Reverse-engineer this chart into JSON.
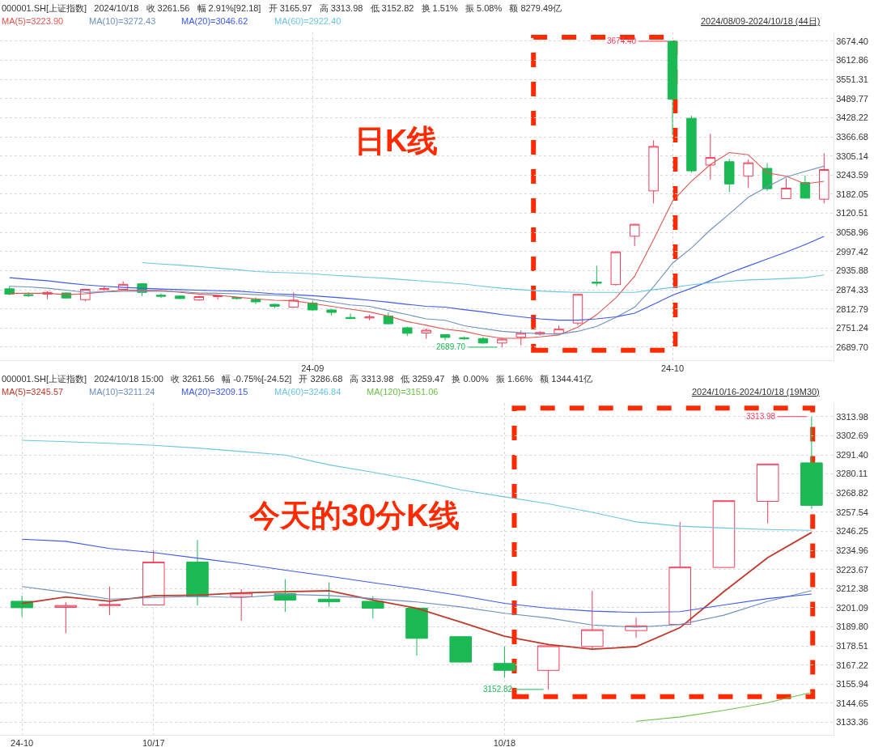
{
  "chart_data": [
    {
      "type": "candlestick",
      "title": "000001.SH[上证指数]   2024/10/18   收 3261.56   幅 2.91%[92.18]   开 3165.97   高 3313.98   低 3152.82   换 1.51%   振 5.08%   额 8279.49亿",
      "categories": [
        null,
        null,
        null,
        null,
        null,
        null,
        null,
        null,
        null,
        null,
        null,
        null,
        null,
        null,
        null,
        null,
        "24-09",
        null,
        null,
        null,
        null,
        null,
        null,
        null,
        null,
        null,
        null,
        null,
        null,
        null,
        null,
        null,
        null,
        null,
        null,
        "24-10",
        null,
        null,
        null,
        null,
        null,
        null,
        null,
        null
      ],
      "ohlc": [
        [
          2877.6,
          2885.7,
          2857.0,
          2860.6
        ],
        [
          2858.9,
          2866.0,
          2850.8,
          2856.1
        ],
        [
          2860.6,
          2870.5,
          2844.5,
          2866.0
        ],
        [
          2864.2,
          2866.0,
          2846.3,
          2848.1
        ],
        [
          2842.7,
          2876.8,
          2837.3,
          2875.9
        ],
        [
          2875.0,
          2885.7,
          2871.4,
          2878.6
        ],
        [
          2875.9,
          2901.8,
          2873.2,
          2892.0
        ],
        [
          2893.8,
          2895.6,
          2854.4,
          2866.0
        ],
        [
          2857.0,
          2862.4,
          2848.1,
          2853.5
        ],
        [
          2854.4,
          2857.0,
          2845.4,
          2846.3
        ],
        [
          2841.8,
          2855.3,
          2839.1,
          2852.6
        ],
        [
          2852.6,
          2857.0,
          2843.6,
          2855.3
        ],
        [
          2849.9,
          2852.6,
          2842.7,
          2846.3
        ],
        [
          2843.6,
          2849.9,
          2828.4,
          2835.6
        ],
        [
          2827.5,
          2830.4,
          2815.0,
          2821.3
        ],
        [
          2818.6,
          2866.0,
          2816.8,
          2841.0
        ],
        [
          2832.0,
          2837.4,
          2807.8,
          2809.6
        ],
        [
          2809.6,
          2812.4,
          2791.6,
          2801.6
        ],
        [
          2785.5,
          2798.0,
          2780.1,
          2781.9
        ],
        [
          2783.7,
          2794.4,
          2776.5,
          2787.2
        ],
        [
          2789.9,
          2801.6,
          2763.1,
          2764.9
        ],
        [
          2752.3,
          2755.9,
          2725.5,
          2734.4
        ],
        [
          2735.3,
          2749.9,
          2716.5,
          2744.3
        ],
        [
          2730.0,
          2731.7,
          2712.0,
          2721.0
        ],
        [
          2720.1,
          2724.6,
          2713.8,
          2716.5
        ],
        [
          2717.4,
          2722.8,
          2700.4,
          2703.1
        ],
        [
          2703.1,
          2720.1,
          2689.7,
          2715.6
        ],
        [
          2721.9,
          2743.4,
          2695.9,
          2734.4
        ],
        [
          2731.7,
          2741.6,
          2727.3,
          2737.1
        ],
        [
          2733.5,
          2758.8,
          2731.7,
          2747.8
        ],
        [
          2767.5,
          2861.5,
          2760.4,
          2859.7
        ],
        [
          2899.1,
          2951.0,
          2886.6,
          2895.6
        ],
        [
          2891.1,
          2998.4,
          2888.4,
          2996.6
        ],
        [
          3046.8,
          3087.1,
          3015.5,
          3085.3
        ],
        [
          3192.8,
          3355.7,
          3152.5,
          3336.0
        ],
        [
          3674.4,
          3674.4,
          3371.8,
          3488.2
        ],
        [
          3426.4,
          3434.5,
          3251.0,
          3257.3
        ],
        [
          3276.0,
          3376.3,
          3228.6,
          3300.2
        ],
        [
          3286.8,
          3295.7,
          3188.2,
          3215.1
        ],
        [
          3240.2,
          3293.9,
          3201.7,
          3283.2
        ],
        [
          3265.3,
          3282.3,
          3192.7,
          3199.9
        ],
        [
          3167.7,
          3233.0,
          3167.7,
          3201.7
        ],
        [
          3219.6,
          3242.0,
          3167.7,
          3169.38
        ],
        [
          3165.97,
          3313.98,
          3152.82,
          3261.56
        ]
      ],
      "series": [
        {
          "type": "line",
          "name": "MA(5)=3223.90",
          "color": "#e0574f",
          "values": [
            2863.3,
            2863.3,
            2863.3,
            2858.8,
            2861.5,
            2867.8,
            2873.2,
            2873.2,
            2872.3,
            2866.0,
            2860.6,
            2857.1,
            2850.8,
            2845.4,
            2840.9,
            2839.2,
            2830.2,
            2821.3,
            2812.3,
            2803.4,
            2789.9,
            2772.0,
            2760.4,
            2747.8,
            2740.7,
            2727.3,
            2718.3,
            2718.3,
            2722.8,
            2729.0,
            2754.1,
            2794.4,
            2848.1,
            2917.9,
            3036.1,
            3159.6,
            3224.1,
            3277.8,
            3316.3,
            3309.1,
            3251.0,
            3240.2,
            3215.1,
            3223.9
          ]
        },
        {
          "type": "line",
          "name": "MA(10)=3272.43",
          "color": "#6f8fbf",
          "values": [
            2885.7,
            2883.9,
            2879.5,
            2873.2,
            2866.0,
            2867.8,
            2869.6,
            2870.5,
            2869.6,
            2868.7,
            2864.2,
            2863.3,
            2861.5,
            2858.8,
            2857.1,
            2852.6,
            2843.6,
            2834.7,
            2825.7,
            2821.3,
            2807.8,
            2794.4,
            2781.0,
            2776.5,
            2758.6,
            2749.6,
            2740.7,
            2736.2,
            2733.5,
            2731.7,
            2740.7,
            2756.8,
            2785.4,
            2818.6,
            2883.9,
            2960.0,
            3009.2,
            3067.4,
            3118.5,
            3172.2,
            3206.2,
            3237.5,
            3255.4,
            3272.43
          ]
        },
        {
          "type": "line",
          "name": "MA(20)=3046.62",
          "color": "#3d5af1",
          "values": [
            2913.4,
            2908.1,
            2903.6,
            2896.4,
            2890.2,
            2885.7,
            2882.1,
            2879.5,
            2876.8,
            2875.0,
            2873.2,
            2871.4,
            2870.5,
            2866.0,
            2861.5,
            2858.8,
            2855.3,
            2850.8,
            2846.3,
            2840.9,
            2834.7,
            2827.5,
            2821.3,
            2818.6,
            2810.5,
            2803.4,
            2794.4,
            2787.2,
            2781.0,
            2776.5,
            2776.5,
            2781.0,
            2787.2,
            2798.9,
            2827.5,
            2857.1,
            2879.5,
            2903.6,
            2928.7,
            2951.1,
            2973.4,
            2995.8,
            3020.0,
            3046.62
          ]
        },
        {
          "type": "line",
          "name": "MA(60)=2922.40",
          "color": "#6cc5e0",
          "values": [
            null,
            null,
            null,
            null,
            null,
            null,
            null,
            2961.8,
            2957.3,
            2953.7,
            2949.3,
            2943.9,
            2939.4,
            2933.2,
            2930.5,
            2928.7,
            2926.0,
            2921.5,
            2917.9,
            2914.3,
            2910.8,
            2906.3,
            2901.8,
            2897.4,
            2892.9,
            2885.7,
            2879.5,
            2875.0,
            2870.5,
            2867.8,
            2866.0,
            2866.0,
            2866.0,
            2866.0,
            2875.0,
            2882.1,
            2890.2,
            2897.4,
            2901.8,
            2906.3,
            2908.1,
            2910.8,
            2913.4,
            2922.4
          ]
        }
      ],
      "annotations": [
        "2024/08/09-2024/10/18 (44日)",
        "日K线",
        "3674.40",
        "2689.70"
      ],
      "ylim": [
        2648,
        3703
      ],
      "yticks": [
        {
          "value": 2689.7,
          "label": "2689.70"
        },
        {
          "value": 2751.24,
          "label": "2751.24"
        },
        {
          "value": 2812.79,
          "label": "2812.79"
        },
        {
          "value": 2874.33,
          "label": "2874.33"
        },
        {
          "value": 2935.88,
          "label": "2935.88"
        },
        {
          "value": 2997.42,
          "label": "2997.42"
        },
        {
          "value": 3058.96,
          "label": "3058.96"
        },
        {
          "value": 3120.51,
          "label": "3120.51"
        },
        {
          "value": 3182.05,
          "label": "3182.05"
        },
        {
          "value": 3243.59,
          "label": "3243.59"
        },
        {
          "value": 3305.14,
          "label": "3305.14"
        },
        {
          "value": 3366.68,
          "label": "3366.68"
        },
        {
          "value": 3428.22,
          "label": "3428.22"
        },
        {
          "value": 3489.77,
          "label": "3489.77"
        },
        {
          "value": 3551.31,
          "label": "3551.31"
        },
        {
          "value": 3612.86,
          "label": "3612.86"
        },
        {
          "value": 3674.4,
          "label": "3674.40"
        }
      ],
      "grid": true,
      "legend": false
    },
    {
      "type": "candlestick",
      "title": "000001.SH[上证指数]   2024/10/18 15:00   收 3261.56   幅 -0.75%[-24.52]   开 3286.68   高 3313.98   低 3259.47   换 0.00%   振 1.66%   额 1344.41亿",
      "categories": [
        "24-10",
        null,
        null,
        "10/17",
        null,
        null,
        null,
        null,
        null,
        null,
        null,
        "10/18",
        null,
        null,
        null,
        null,
        null,
        null,
        null
      ],
      "ohlc": [
        [
          3204.9,
          3208.2,
          3195.8,
          3201.1
        ],
        [
          3201.3,
          3204.4,
          3186.0,
          3202.4
        ],
        [
          3202.4,
          3213.6,
          3196.7,
          3202.9
        ],
        [
          3202.7,
          3235.0,
          3202.7,
          3228.1
        ],
        [
          3228.1,
          3241.1,
          3202.4,
          3207.7
        ],
        [
          3207.7,
          3212.0,
          3193.4,
          3209.7
        ],
        [
          3209.5,
          3218.0,
          3198.6,
          3205.6
        ],
        [
          3206.2,
          3216.1,
          3201.6,
          3204.6
        ],
        [
          3204.9,
          3207.9,
          3194.7,
          3200.8
        ],
        [
          3200.8,
          3200.8,
          3172.8,
          3183.0
        ],
        [
          3184.0,
          3184.3,
          3168.7,
          3169.0
        ],
        [
          3168.2,
          3178.2,
          3159.7,
          3164.1
        ],
        [
          3164.1,
          3178.6,
          3152.82,
          3178.6
        ],
        [
          3178.2,
          3211.1,
          3176.1,
          3188.1
        ],
        [
          3187.6,
          3195.3,
          3183.2,
          3190.4
        ],
        [
          3191.2,
          3251.8,
          3191.2,
          3225.1
        ],
        [
          3224.9,
          3264.3,
          3224.9,
          3264.3
        ],
        [
          3263.9,
          3286.0,
          3250.9,
          3286.0
        ],
        [
          3286.68,
          3313.98,
          3259.47,
          3261.56
        ]
      ],
      "series": [
        {
          "type": "line",
          "name": "MA(5)=3245.57",
          "color": "#c0392b",
          "values": [
            3203.6,
            3207.4,
            3204.9,
            3208.2,
            3208.5,
            3209.8,
            3210.6,
            3211.1,
            3205.7,
            3200.8,
            3192.6,
            3184.3,
            3179.4,
            3176.6,
            3178.1,
            3189.3,
            3210.6,
            3230.7,
            3245.57
          ]
        },
        {
          "type": "line",
          "name": "MA(10)=3211.24",
          "color": "#6f8fbf",
          "values": [
            3213.6,
            3210.2,
            3206.2,
            3207.0,
            3207.9,
            3207.0,
            3209.0,
            3208.3,
            3206.5,
            3204.5,
            3201.6,
            3197.8,
            3195.0,
            3190.9,
            3189.6,
            3191.2,
            3196.7,
            3204.9,
            3211.24
          ]
        },
        {
          "type": "line",
          "name": "MA(20)=3209.15",
          "color": "#3d5af1",
          "values": [
            3241.6,
            3240.3,
            3236.1,
            3233.7,
            3230.4,
            3227.1,
            3223.3,
            3219.7,
            3215.9,
            3212.3,
            3208.2,
            3203.7,
            3200.8,
            3199.1,
            3198.3,
            3198.8,
            3202.7,
            3206.5,
            3209.15
          ]
        },
        {
          "type": "line",
          "name": "MA(60)=3246.84",
          "color": "#6cc5e0",
          "values": [
            3300.0,
            3299.2,
            3298.2,
            3297.0,
            3295.4,
            3293.4,
            3291.3,
            3285.5,
            3281.1,
            3276.4,
            3270.7,
            3266.6,
            3262.5,
            3257.5,
            3251.8,
            3249.3,
            3248.2,
            3247.3,
            3246.84
          ]
        },
        {
          "type": "line",
          "name": "MA(120)=3151.06",
          "color": "#6cc04a",
          "values": [
            null,
            null,
            null,
            null,
            null,
            null,
            null,
            null,
            null,
            null,
            null,
            null,
            null,
            null,
            3134.0,
            3136.6,
            3140.5,
            3145.0,
            3151.06
          ]
        }
      ],
      "annotations": [
        "2024/10/16-2024/10/18 (19M30)",
        "今天的30分K线",
        "3313.98",
        "3152.82"
      ],
      "ylim": [
        3126,
        3322
      ],
      "yticks": [
        {
          "value": 3133.36,
          "label": "3133.36"
        },
        {
          "value": 3144.65,
          "label": "3144.65"
        },
        {
          "value": 3155.94,
          "label": "3155.94"
        },
        {
          "value": 3167.22,
          "label": "3167.22"
        },
        {
          "value": 3178.51,
          "label": "3178.51"
        },
        {
          "value": 3189.8,
          "label": "3189.80"
        },
        {
          "value": 3201.09,
          "label": "3201.09"
        },
        {
          "value": 3212.38,
          "label": "3212.38"
        },
        {
          "value": 3223.67,
          "label": "3223.67"
        },
        {
          "value": 3234.96,
          "label": "3234.96"
        },
        {
          "value": 3246.25,
          "label": "3246.25"
        },
        {
          "value": 3257.54,
          "label": "3257.54"
        },
        {
          "value": 3268.82,
          "label": "3268.82"
        },
        {
          "value": 3280.11,
          "label": "3280.11"
        },
        {
          "value": 3291.4,
          "label": "3291.40"
        },
        {
          "value": 3302.69,
          "label": "3302.69"
        },
        {
          "value": 3313.98,
          "label": "3313.98"
        }
      ],
      "grid": true,
      "legend": false
    }
  ]
}
